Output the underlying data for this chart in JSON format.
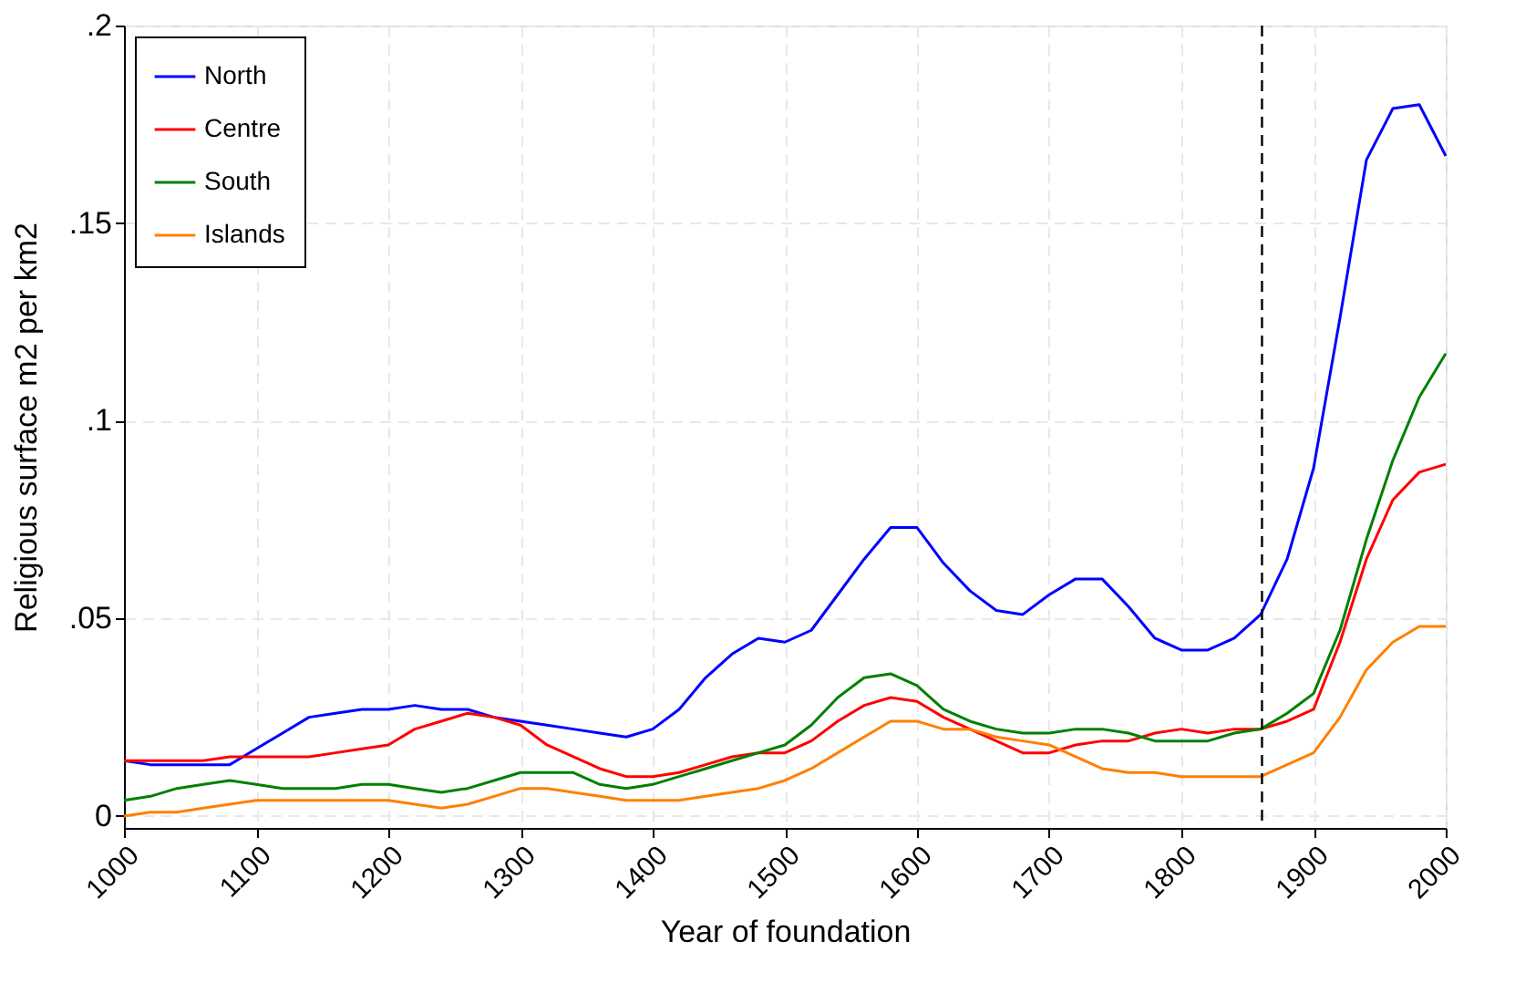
{
  "chart_data": {
    "type": "line",
    "xlabel": "Year of foundation",
    "ylabel": "Religious surface m2 per km2",
    "x": [
      1000,
      1020,
      1040,
      1060,
      1080,
      1100,
      1120,
      1140,
      1160,
      1180,
      1200,
      1220,
      1240,
      1260,
      1280,
      1300,
      1320,
      1340,
      1360,
      1380,
      1400,
      1420,
      1440,
      1460,
      1480,
      1500,
      1520,
      1540,
      1560,
      1580,
      1600,
      1620,
      1640,
      1660,
      1680,
      1700,
      1720,
      1740,
      1760,
      1780,
      1800,
      1820,
      1840,
      1860,
      1880,
      1900,
      1920,
      1940,
      1960,
      1980,
      2000
    ],
    "series": [
      {
        "name": "North",
        "color": "#0000ff",
        "values": [
          0.014,
          0.013,
          0.013,
          0.013,
          0.013,
          0.017,
          0.021,
          0.025,
          0.026,
          0.027,
          0.027,
          0.028,
          0.027,
          0.027,
          0.025,
          0.024,
          0.023,
          0.022,
          0.021,
          0.02,
          0.022,
          0.027,
          0.035,
          0.041,
          0.045,
          0.044,
          0.047,
          0.056,
          0.065,
          0.073,
          0.073,
          0.064,
          0.057,
          0.052,
          0.051,
          0.056,
          0.06,
          0.06,
          0.053,
          0.045,
          0.042,
          0.042,
          0.045,
          0.051,
          0.065,
          0.088,
          0.126,
          0.166,
          0.179,
          0.18,
          0.167
        ]
      },
      {
        "name": "Centre",
        "color": "#ff0000",
        "values": [
          0.014,
          0.014,
          0.014,
          0.014,
          0.015,
          0.015,
          0.015,
          0.015,
          0.016,
          0.017,
          0.018,
          0.022,
          0.024,
          0.026,
          0.025,
          0.023,
          0.018,
          0.015,
          0.012,
          0.01,
          0.01,
          0.011,
          0.013,
          0.015,
          0.016,
          0.016,
          0.019,
          0.024,
          0.028,
          0.03,
          0.029,
          0.025,
          0.022,
          0.019,
          0.016,
          0.016,
          0.018,
          0.019,
          0.019,
          0.021,
          0.022,
          0.021,
          0.022,
          0.022,
          0.024,
          0.027,
          0.044,
          0.065,
          0.08,
          0.087,
          0.089
        ]
      },
      {
        "name": "South",
        "color": "#008000",
        "values": [
          0.004,
          0.005,
          0.007,
          0.008,
          0.009,
          0.008,
          0.007,
          0.007,
          0.007,
          0.008,
          0.008,
          0.007,
          0.006,
          0.007,
          0.009,
          0.011,
          0.011,
          0.011,
          0.008,
          0.007,
          0.008,
          0.01,
          0.012,
          0.014,
          0.016,
          0.018,
          0.023,
          0.03,
          0.035,
          0.036,
          0.033,
          0.027,
          0.024,
          0.022,
          0.021,
          0.021,
          0.022,
          0.022,
          0.021,
          0.019,
          0.019,
          0.019,
          0.021,
          0.022,
          0.026,
          0.031,
          0.047,
          0.07,
          0.09,
          0.106,
          0.117
        ]
      },
      {
        "name": "Islands",
        "color": "#ff8000",
        "values": [
          0.0,
          0.001,
          0.001,
          0.002,
          0.003,
          0.004,
          0.004,
          0.004,
          0.004,
          0.004,
          0.004,
          0.003,
          0.002,
          0.003,
          0.005,
          0.007,
          0.007,
          0.006,
          0.005,
          0.004,
          0.004,
          0.004,
          0.005,
          0.006,
          0.007,
          0.009,
          0.012,
          0.016,
          0.02,
          0.024,
          0.024,
          0.022,
          0.022,
          0.02,
          0.019,
          0.018,
          0.015,
          0.012,
          0.011,
          0.011,
          0.01,
          0.01,
          0.01,
          0.01,
          0.013,
          0.016,
          0.025,
          0.037,
          0.044,
          0.048,
          0.048
        ]
      }
    ],
    "xlim": [
      1000,
      2000
    ],
    "xticks": [
      1000,
      1100,
      1200,
      1300,
      1400,
      1500,
      1600,
      1700,
      1800,
      1900,
      2000
    ],
    "ylim": [
      -0.003,
      0.2
    ],
    "yticks": [
      {
        "value": 0,
        "label": "0"
      },
      {
        "value": 0.05,
        "label": ".05"
      },
      {
        "value": 0.1,
        "label": ".1"
      },
      {
        "value": 0.15,
        "label": ".15"
      },
      {
        "value": 0.2,
        "label": ".2"
      }
    ],
    "ref_lines": [
      {
        "axis": "x",
        "value": 1861,
        "label": null,
        "color": "#000000",
        "line_style": "dashed"
      }
    ],
    "grid": true,
    "legend": "top left",
    "marker": "none",
    "line_style": "solid"
  }
}
